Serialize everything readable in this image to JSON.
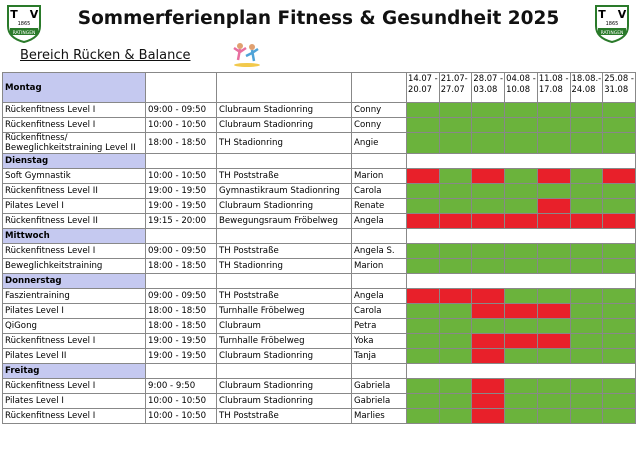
{
  "header": {
    "title": "Sommerferienplan Fitness & Gesundheit 2025",
    "subtitle": "Bereich Rücken & Balance",
    "logo": {
      "left_letter": "T",
      "year": "1865",
      "right_letter": "V",
      "town": "RATINGEN"
    }
  },
  "table": {
    "weeks": [
      [
        "14.07 -",
        "20.07"
      ],
      [
        "21.07-",
        "27.07"
      ],
      [
        "28.07 -",
        "03.08"
      ],
      [
        "04.08 -",
        "10.08"
      ],
      [
        "11.08 -",
        "17.08"
      ],
      [
        "18.08.-",
        "24.08"
      ],
      [
        "25.08 -",
        "31.08"
      ]
    ],
    "days": [
      {
        "name": "Montag",
        "rows": [
          {
            "course": "Rückenfitness Level I",
            "time": "09:00 - 09:50",
            "place": "Clubraum Stadionring",
            "trainer": "Conny",
            "weeks": [
              "#6bb33c",
              "#6bb33c",
              "#6bb33c",
              "#6bb33c",
              "#6bb33c",
              "#6bb33c",
              "#6bb33c"
            ]
          },
          {
            "course": "Rückenfitness Level I",
            "time": "10:00 - 10:50",
            "place": "Clubraum Stadionring",
            "trainer": "Conny",
            "weeks": [
              "#6bb33c",
              "#6bb33c",
              "#6bb33c",
              "#6bb33c",
              "#6bb33c",
              "#6bb33c",
              "#6bb33c"
            ]
          },
          {
            "course": "Rückenfitness/ Beweglichkeitstraining Level II",
            "time": "18:00 - 18:50",
            "place": "TH Stadionring",
            "trainer": "Angie",
            "weeks": [
              "#6bb33c",
              "#6bb33c",
              "#6bb33c",
              "#6bb33c",
              "#6bb33c",
              "#6bb33c",
              "#6bb33c"
            ]
          }
        ]
      },
      {
        "name": "Dienstag",
        "rows": [
          {
            "course": "Soft Gymnastik",
            "time": "10:00 - 10:50",
            "place": "TH Poststraße",
            "trainer": "Marion",
            "weeks": [
              "#e8202a",
              "#6bb33c",
              "#e8202a",
              "#6bb33c",
              "#e8202a",
              "#6bb33c",
              "#e8202a"
            ]
          },
          {
            "course": "Rückenfitness Level II",
            "time": "19:00 - 19:50",
            "place": "Gymnastikraum Stadionring",
            "trainer": "Carola",
            "weeks": [
              "#6bb33c",
              "#6bb33c",
              "#6bb33c",
              "#6bb33c",
              "#6bb33c",
              "#6bb33c",
              "#6bb33c"
            ]
          },
          {
            "course": "Pilates Level I",
            "time": "19:00 - 19:50",
            "place": "Clubraum Stadionring",
            "trainer": "Renate",
            "weeks": [
              "#6bb33c",
              "#6bb33c",
              "#6bb33c",
              "#6bb33c",
              "#e8202a",
              "#6bb33c",
              "#6bb33c"
            ]
          },
          {
            "course": "Rückenfitness Level II",
            "time": "19:15 - 20:00",
            "place": "Bewegungsraum Fröbelweg",
            "trainer": "Angela",
            "weeks": [
              "#e8202a",
              "#e8202a",
              "#e8202a",
              "#e8202a",
              "#e8202a",
              "#e8202a",
              "#e8202a"
            ]
          }
        ]
      },
      {
        "name": "Mittwoch",
        "rows": [
          {
            "course": "Rückenfitness Level I",
            "time": "09:00 - 09:50",
            "place": "TH Poststraße",
            "trainer": "Angela S.",
            "weeks": [
              "#6bb33c",
              "#6bb33c",
              "#6bb33c",
              "#6bb33c",
              "#6bb33c",
              "#6bb33c",
              "#6bb33c"
            ]
          },
          {
            "course": "Beweglichkeitstraining",
            "time": "18:00 - 18:50",
            "place": "TH Stadionring",
            "trainer": "Marion",
            "weeks": [
              "#6bb33c",
              "#6bb33c",
              "#6bb33c",
              "#6bb33c",
              "#6bb33c",
              "#6bb33c",
              "#6bb33c"
            ]
          }
        ]
      },
      {
        "name": "Donnerstag",
        "rows": [
          {
            "course": "Faszientraining",
            "time": "09:00 - 09:50",
            "place": "TH Poststraße",
            "trainer": "Angela",
            "weeks": [
              "#e8202a",
              "#e8202a",
              "#e8202a",
              "#6bb33c",
              "#6bb33c",
              "#6bb33c",
              "#6bb33c"
            ]
          },
          {
            "course": "Pilates Level I",
            "time": "18:00 - 18:50",
            "place": "Turnhalle Fröbelweg",
            "trainer": "Carola",
            "weeks": [
              "#6bb33c",
              "#6bb33c",
              "#e8202a",
              "#e8202a",
              "#e8202a",
              "#6bb33c",
              "#6bb33c"
            ]
          },
          {
            "course": "QiGong",
            "time": "18:00 - 18:50",
            "place": "Clubraum",
            "trainer": "Petra",
            "weeks": [
              "#6bb33c",
              "#6bb33c",
              "#6bb33c",
              "#6bb33c",
              "#6bb33c",
              "#6bb33c",
              "#6bb33c"
            ]
          },
          {
            "course": "Rückenfitness Level I",
            "time": "19:00 - 19:50",
            "place": "Turnhalle Fröbelweg",
            "trainer": "Yoka",
            "weeks": [
              "#6bb33c",
              "#6bb33c",
              "#e8202a",
              "#e8202a",
              "#e8202a",
              "#6bb33c",
              "#6bb33c"
            ]
          },
          {
            "course": "Pilates Level II",
            "time": "19:00 - 19:50",
            "place": "Clubraum Stadionring",
            "trainer": "Tanja",
            "weeks": [
              "#6bb33c",
              "#6bb33c",
              "#e8202a",
              "#6bb33c",
              "#6bb33c",
              "#6bb33c",
              "#6bb33c"
            ]
          }
        ]
      },
      {
        "name": "Freitag",
        "rows": [
          {
            "course": "Rückenfitness Level I",
            "time": "9:00 - 9:50",
            "place": "Clubraum Stadionring",
            "trainer": "Gabriela",
            "weeks": [
              "#6bb33c",
              "#6bb33c",
              "#e8202a",
              "#6bb33c",
              "#6bb33c",
              "#6bb33c",
              "#6bb33c"
            ]
          },
          {
            "course": "Pilates Level I",
            "time": "10:00 - 10:50",
            "place": "Clubraum Stadionring",
            "trainer": "Gabriela",
            "weeks": [
              "#6bb33c",
              "#6bb33c",
              "#e8202a",
              "#6bb33c",
              "#6bb33c",
              "#6bb33c",
              "#6bb33c"
            ]
          },
          {
            "course": "Rückenfitness Level I",
            "time": "10:00 - 10:50",
            "place": "TH Poststraße",
            "trainer": "Marlies",
            "weeks": [
              "#6bb33c",
              "#6bb33c",
              "#e8202a",
              "#6bb33c",
              "#6bb33c",
              "#6bb33c",
              "#6bb33c"
            ]
          }
        ]
      }
    ]
  }
}
